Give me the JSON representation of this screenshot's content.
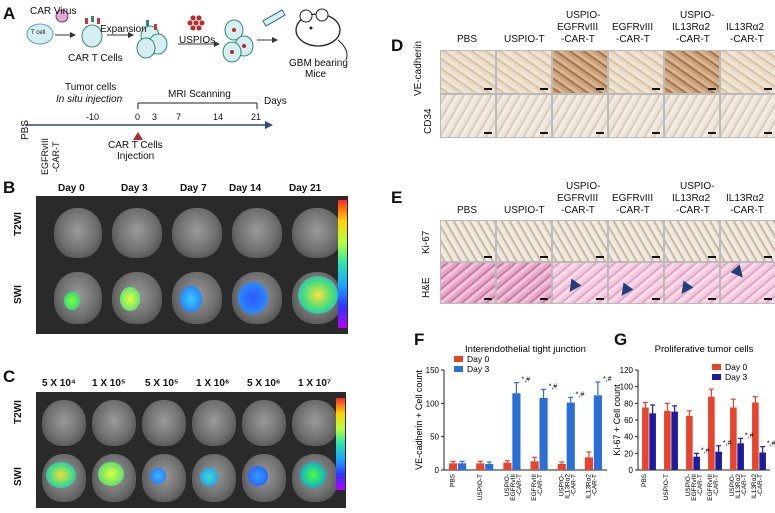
{
  "panels": {
    "A": "A",
    "B": "B",
    "C": "C",
    "D": "D",
    "E": "E",
    "F": "F",
    "G": "G"
  },
  "panel_a": {
    "car_virus": "CAR Virus",
    "t_cell": "T cell",
    "expansion": "Expansion",
    "car_t_cells": "CAR T Cells",
    "uspios": "USPIOs",
    "gbm_line1": "GBM bearing",
    "gbm_line2": "Mice",
    "tumor_line1": "Tumor cells",
    "tumor_line2": "In situ injection",
    "mri": "MRI Scanning",
    "days": "Days",
    "ticks": [
      "-10",
      "0",
      "3",
      "7",
      "14",
      "21"
    ],
    "pbs": "PBS",
    "egfr1": "EGFRvIII",
    "egfr2": "-CAR-T",
    "inj1": "CAR T Cells",
    "inj2": "Injection"
  },
  "panel_b": {
    "days": [
      "Day 0",
      "Day 3",
      "Day 7",
      "Day 14",
      "Day 21"
    ],
    "row1": "T2WI",
    "row2": "SWI"
  },
  "panel_c": {
    "doses": [
      "5 X 10⁴",
      "1 X 10⁵",
      "5 X 10⁵",
      "1 X 10⁶",
      "5 X 10⁶",
      "1 X 10⁷"
    ],
    "row1": "T2WI",
    "row2": "SWI"
  },
  "panel_d": {
    "headers": [
      [
        "PBS"
      ],
      [
        "USPIO-T"
      ],
      [
        "USPIO-",
        "EGFRvIII",
        "-CAR-T"
      ],
      [
        "EGFRvIII",
        "-CAR-T"
      ],
      [
        "USPIO-",
        "IL13Rα2",
        "-CAR-T"
      ],
      [
        "IL13Rα2",
        "-CAR-T"
      ]
    ],
    "row1": "VE-cadherin",
    "row2": "CD34"
  },
  "panel_e": {
    "headers": [
      [
        "PBS"
      ],
      [
        "USPIO-T"
      ],
      [
        "USPIO-",
        "EGFRvIII",
        "-CAR-T"
      ],
      [
        "EGFRvIII",
        "-CAR-T"
      ],
      [
        "USPIO-",
        "IL13Rα2",
        "-CAR-T"
      ],
      [
        "IL13Rα2",
        "-CAR-T"
      ]
    ],
    "row1": "Ki-67",
    "row2": "H&E"
  },
  "colors": {
    "day0": "#e8432b",
    "day3_f": "#2a6fd6",
    "day3_g": "#1c1c9e"
  },
  "chart_data": [
    {
      "type": "bar",
      "title": "Interendothelial tight junction",
      "ylabel": "VE-cadherin + Cell count",
      "ylim": [
        0,
        150
      ],
      "yticks": [
        0,
        50,
        100,
        150
      ],
      "categories": [
        "PBS",
        "USPIO-T",
        "USPIO-EGFRvIII-CAR-T",
        "EGFRvIII-CAR-T",
        "USPIO-IL13Rα2-CAR-T",
        "IL13Rα2-CAR-T"
      ],
      "category_lines": [
        [
          "PBS"
        ],
        [
          "USPIO-T"
        ],
        [
          "USPIO-",
          "EGFRvIII",
          "-CAR-T"
        ],
        [
          "EGFRvIII",
          "-CAR-T"
        ],
        [
          "USPIO-",
          "IL13Rα2",
          "-CAR-T"
        ],
        [
          "IL13Rα2",
          "-CAR-T"
        ]
      ],
      "series": [
        {
          "name": "Day 0",
          "values": [
            10,
            10,
            11,
            13,
            9,
            19
          ],
          "errors": [
            3,
            3,
            3,
            6,
            3,
            8
          ]
        },
        {
          "name": "Day 3",
          "values": [
            10,
            9,
            115,
            108,
            101,
            112
          ],
          "errors": [
            3,
            3,
            16,
            13,
            8,
            20
          ]
        }
      ],
      "annotations": [
        "",
        "",
        "*,#",
        "*,#",
        "*,#",
        "*,#"
      ],
      "legend": "top-left"
    },
    {
      "type": "bar",
      "title": "Proliferative tumor cells",
      "ylabel": "Ki-67 + Cell count",
      "ylim": [
        0,
        120
      ],
      "yticks": [
        0,
        20,
        40,
        60,
        80,
        100,
        120
      ],
      "categories": [
        "PBS",
        "USPIO-T",
        "USPIO-EGFRvIII-CAR-T",
        "EGFRvIII-CAR-T",
        "USPIO-IL13Rα2-CAR-T",
        "IL13Rα2-CAR-T"
      ],
      "category_lines": [
        [
          "PBS"
        ],
        [
          "USPIO-T"
        ],
        [
          "USPIO-",
          "EGFRvIII",
          "-CAR-T"
        ],
        [
          "EGFRvIII",
          "-CAR-T"
        ],
        [
          "USPIO-",
          "IL13Rα2",
          "-CAR-T"
        ],
        [
          "IL13Rα2",
          "-CAR-T"
        ]
      ],
      "series": [
        {
          "name": "Day 0",
          "values": [
            75,
            71,
            65,
            88,
            75,
            81
          ],
          "errors": [
            6,
            9,
            6,
            9,
            10,
            7
          ]
        },
        {
          "name": "Day 3",
          "values": [
            68,
            70,
            16,
            22,
            32,
            21
          ],
          "errors": [
            10,
            7,
            4,
            7,
            6,
            7
          ]
        }
      ],
      "annotations": [
        "",
        "",
        "*,#",
        "*,#",
        "*,#",
        "*,#"
      ],
      "legend": "top-right"
    }
  ]
}
